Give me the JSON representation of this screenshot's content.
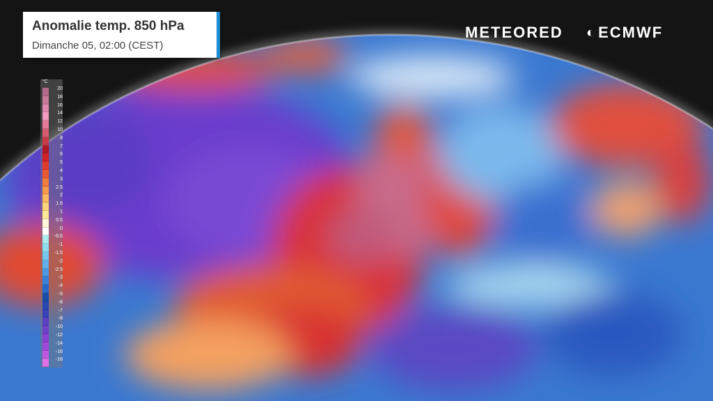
{
  "header": {
    "title": "Anomalie temp. 850 hPa",
    "subtitle": "Dimanche 05, 02:00 (CEST)",
    "accent_color": "#1e8fd6"
  },
  "logos": {
    "meteored": "METEORED",
    "ecmwf": "ECMWF"
  },
  "legend": {
    "unit": "°C",
    "labels": [
      "20",
      "18",
      "16",
      "14",
      "12",
      "10",
      "8",
      "7",
      "6",
      "5",
      "4",
      "3",
      "2.5",
      "2",
      "1.5",
      "1",
      "0.5",
      "0",
      "-0.5",
      "-1",
      "-1.5",
      "-2",
      "-2.5",
      "-3",
      "-4",
      "-5",
      "-6",
      "-7",
      "-8",
      "-10",
      "-12",
      "-14",
      "-16",
      "-18"
    ],
    "colors": [
      "#b46a8a",
      "#c77a9a",
      "#e08ab0",
      "#f09ac0",
      "#e27a98",
      "#d85c70",
      "#c83a48",
      "#b01a28",
      "#d02028",
      "#e03a2a",
      "#ea5a30",
      "#f07a3a",
      "#f59a4a",
      "#f8b860",
      "#fbd47a",
      "#fde89a",
      "#fff8d8",
      "#ffffff",
      "#a8ecf0",
      "#8cdcf0",
      "#74c8f0",
      "#60b0ec",
      "#4c98e4",
      "#3a80d8",
      "#2a68c8",
      "#1a4ea8",
      "#2a48b0",
      "#3a44b8",
      "#5a40c0",
      "#7040c8",
      "#8a40d0",
      "#a048d8",
      "#c058e0",
      "#e070e8"
    ]
  },
  "map": {
    "region": "North Atlantic and Europe",
    "colors": {
      "warm": "#d8303a",
      "hot": "#c86a8a",
      "cold": "#6040c8",
      "cool": "#3a80d8",
      "background": "#141414"
    }
  }
}
